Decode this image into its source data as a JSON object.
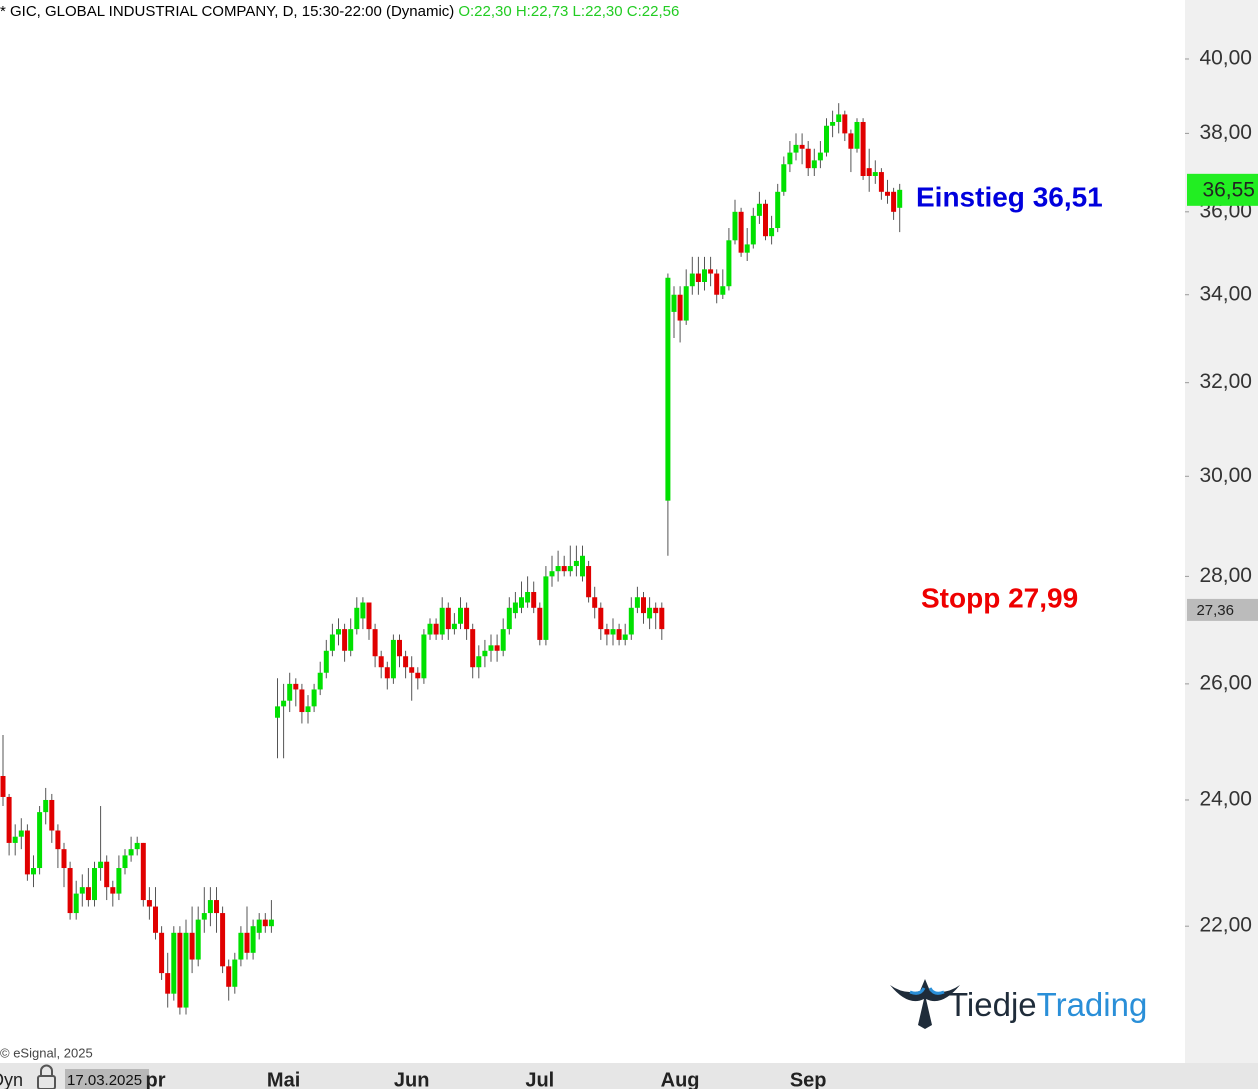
{
  "chart_data": {
    "type": "candlestick",
    "title": "* GIC, GLOBAL INDUSTRIAL COMPANY, D, 15:30-22:00 (Dynamic)",
    "ohlc_legend": "O:22,30 H:22,73 L:22,30 C:22,56",
    "ohlc_legend_color": "#22cc22",
    "up_color": "#00e000",
    "down_color": "#e00000",
    "wick_color": "#555555",
    "log_scale": true,
    "ylim": [
      20.02,
      41.66
    ],
    "yticks": [
      {
        "value": 22,
        "label": "22,00"
      },
      {
        "value": 24,
        "label": "24,00"
      },
      {
        "value": 26,
        "label": "26,00"
      },
      {
        "value": 28,
        "label": "28,00"
      },
      {
        "value": 30,
        "label": "30,00"
      },
      {
        "value": 32,
        "label": "32,00"
      },
      {
        "value": 34,
        "label": "34,00"
      },
      {
        "value": 36,
        "label": "36,00"
      },
      {
        "value": 38,
        "label": "38,00"
      },
      {
        "value": 40,
        "label": "40,00"
      }
    ],
    "price_tags": [
      {
        "value": 36.55,
        "label": "36,55",
        "color": "#22ee22"
      },
      {
        "value": 27.36,
        "label": "27,36",
        "color": "#bbbbbb"
      }
    ],
    "annotations": [
      {
        "text": "Einstieg 36,51",
        "color": "#0000dd"
      },
      {
        "text": "Stopp 27,99",
        "color": "#ee0000"
      }
    ],
    "copyright": "© eSignal, 2025",
    "mode": "Dyn",
    "start_date": "17.03.2025",
    "logo": [
      "Tiedje",
      "Trading"
    ],
    "categories": [
      null,
      null,
      null,
      null,
      null,
      null,
      null,
      null,
      null,
      null,
      null,
      null,
      null,
      null,
      null,
      null,
      null,
      null,
      null,
      null,
      null,
      null,
      null,
      null,
      null,
      "pr",
      null,
      null,
      null,
      null,
      null,
      null,
      null,
      null,
      null,
      null,
      null,
      null,
      null,
      null,
      null,
      null,
      null,
      null,
      null,
      null,
      "Mai",
      null,
      null,
      null,
      null,
      null,
      null,
      null,
      null,
      null,
      null,
      null,
      null,
      null,
      null,
      null,
      null,
      null,
      null,
      null,
      null,
      "Jun",
      null,
      null,
      null,
      null,
      null,
      null,
      null,
      null,
      null,
      null,
      null,
      null,
      null,
      null,
      null,
      null,
      null,
      null,
      null,
      null,
      "Jul",
      null,
      null,
      null,
      null,
      null,
      null,
      null,
      null,
      null,
      null,
      null,
      null,
      null,
      null,
      null,
      null,
      null,
      null,
      null,
      null,
      null,
      null,
      "Aug",
      null,
      null,
      null,
      null,
      null,
      null,
      null,
      null,
      null,
      null,
      null,
      null,
      null,
      null,
      null,
      null,
      null,
      null,
      null,
      null,
      "Sep",
      null,
      null,
      null,
      null,
      null,
      null,
      null,
      null,
      null,
      null,
      null,
      null,
      null,
      null,
      null
    ],
    "ohlc": [
      [
        24.4,
        25.1,
        23.9,
        24.05
      ],
      [
        24.05,
        24.1,
        23.1,
        23.3
      ],
      [
        23.3,
        23.6,
        23.1,
        23.4
      ],
      [
        23.4,
        23.7,
        23.2,
        23.5
      ],
      [
        23.5,
        23.6,
        22.7,
        22.8
      ],
      [
        22.8,
        23.1,
        22.6,
        22.9
      ],
      [
        22.9,
        23.9,
        22.8,
        23.8
      ],
      [
        23.8,
        24.2,
        23.6,
        24.0
      ],
      [
        24.0,
        24.1,
        23.3,
        23.5
      ],
      [
        23.5,
        23.6,
        22.9,
        23.2
      ],
      [
        23.2,
        23.3,
        22.6,
        22.9
      ],
      [
        22.9,
        23.0,
        22.1,
        22.2
      ],
      [
        22.2,
        22.7,
        22.1,
        22.5
      ],
      [
        22.5,
        22.8,
        22.3,
        22.6
      ],
      [
        22.6,
        22.9,
        22.3,
        22.4
      ],
      [
        22.4,
        23.0,
        22.3,
        22.9
      ],
      [
        22.9,
        23.9,
        22.7,
        23.0
      ],
      [
        23.0,
        23.1,
        22.4,
        22.6
      ],
      [
        22.6,
        22.7,
        22.3,
        22.5
      ],
      [
        22.5,
        23.1,
        22.4,
        22.9
      ],
      [
        22.9,
        23.2,
        22.8,
        23.1
      ],
      [
        23.1,
        23.4,
        23.0,
        23.2
      ],
      [
        23.2,
        23.4,
        23.1,
        23.3
      ],
      [
        23.3,
        23.3,
        22.3,
        22.4
      ],
      [
        22.4,
        22.6,
        22.1,
        22.3
      ],
      [
        22.3,
        22.6,
        21.8,
        21.9
      ],
      [
        21.9,
        22.0,
        21.2,
        21.3
      ],
      [
        21.3,
        21.6,
        20.8,
        21.0
      ],
      [
        21.0,
        22.0,
        20.9,
        21.9
      ],
      [
        21.9,
        22.0,
        20.7,
        20.8
      ],
      [
        20.8,
        22.1,
        20.7,
        21.9
      ],
      [
        21.9,
        22.3,
        21.3,
        21.5
      ],
      [
        21.5,
        22.3,
        21.4,
        22.1
      ],
      [
        22.1,
        22.6,
        21.9,
        22.2
      ],
      [
        22.2,
        22.6,
        22.0,
        22.4
      ],
      [
        22.4,
        22.6,
        21.9,
        22.2
      ],
      [
        22.2,
        22.3,
        21.3,
        21.4
      ],
      [
        21.4,
        21.5,
        20.9,
        21.1
      ],
      [
        21.1,
        21.6,
        21.0,
        21.5
      ],
      [
        21.5,
        22.0,
        21.4,
        21.9
      ],
      [
        21.9,
        22.3,
        21.5,
        21.6
      ],
      [
        21.6,
        22.1,
        21.5,
        22.0
      ],
      [
        21.9,
        22.2,
        21.8,
        22.1
      ],
      [
        22.1,
        22.2,
        21.9,
        22.0
      ],
      [
        22.0,
        22.4,
        21.9,
        22.1
      ],
      [
        25.4,
        26.1,
        24.7,
        25.6
      ],
      [
        25.6,
        26.0,
        24.7,
        25.7
      ],
      [
        25.7,
        26.2,
        25.5,
        26.0
      ],
      [
        26.0,
        26.1,
        25.6,
        25.9
      ],
      [
        25.9,
        26.0,
        25.3,
        25.5
      ],
      [
        25.5,
        25.8,
        25.3,
        25.6
      ],
      [
        25.6,
        26.0,
        25.5,
        25.9
      ],
      [
        25.9,
        26.4,
        25.8,
        26.2
      ],
      [
        26.2,
        26.8,
        26.1,
        26.6
      ],
      [
        26.6,
        27.1,
        26.5,
        26.9
      ],
      [
        26.9,
        27.2,
        26.7,
        27.0
      ],
      [
        27.0,
        27.1,
        26.4,
        26.6
      ],
      [
        26.6,
        27.2,
        26.5,
        27.0
      ],
      [
        27.0,
        27.6,
        26.9,
        27.4
      ],
      [
        27.2,
        27.6,
        27.0,
        27.5
      ],
      [
        27.5,
        27.5,
        26.8,
        27.0
      ],
      [
        27.0,
        27.1,
        26.3,
        26.5
      ],
      [
        26.5,
        26.6,
        26.1,
        26.3
      ],
      [
        26.3,
        26.4,
        25.9,
        26.1
      ],
      [
        26.1,
        26.9,
        26.0,
        26.8
      ],
      [
        26.8,
        26.9,
        26.3,
        26.5
      ],
      [
        26.5,
        26.6,
        26.1,
        26.3
      ],
      [
        26.3,
        26.5,
        25.7,
        26.2
      ],
      [
        26.2,
        26.3,
        25.9,
        26.1
      ],
      [
        26.1,
        27.0,
        26.0,
        26.9
      ],
      [
        26.9,
        27.2,
        26.8,
        27.1
      ],
      [
        27.1,
        27.2,
        26.8,
        26.9
      ],
      [
        26.9,
        27.6,
        26.8,
        27.4
      ],
      [
        27.4,
        27.5,
        26.8,
        27.0
      ],
      [
        27.0,
        27.3,
        26.9,
        27.1
      ],
      [
        27.1,
        27.6,
        27.0,
        27.4
      ],
      [
        27.4,
        27.5,
        26.8,
        27.0
      ],
      [
        27.0,
        27.1,
        26.1,
        26.3
      ],
      [
        26.3,
        26.7,
        26.1,
        26.5
      ],
      [
        26.5,
        26.8,
        26.3,
        26.6
      ],
      [
        26.6,
        26.9,
        26.4,
        26.7
      ],
      [
        26.7,
        26.9,
        26.4,
        26.6
      ],
      [
        26.6,
        27.2,
        26.5,
        27.0
      ],
      [
        27.0,
        27.6,
        26.9,
        27.4
      ],
      [
        27.3,
        27.7,
        27.2,
        27.5
      ],
      [
        27.4,
        27.9,
        27.3,
        27.6
      ],
      [
        27.5,
        28.0,
        27.4,
        27.7
      ],
      [
        27.7,
        27.9,
        27.3,
        27.4
      ],
      [
        27.4,
        27.5,
        26.7,
        26.8
      ],
      [
        26.8,
        28.2,
        26.7,
        28.0
      ],
      [
        28.0,
        28.4,
        27.8,
        28.1
      ],
      [
        28.1,
        28.5,
        27.9,
        28.2
      ],
      [
        28.2,
        28.4,
        28.0,
        28.1
      ],
      [
        28.1,
        28.6,
        28.0,
        28.2
      ],
      [
        28.2,
        28.6,
        28.0,
        28.3
      ],
      [
        28.0,
        28.6,
        27.9,
        28.4
      ],
      [
        28.2,
        28.3,
        27.5,
        27.6
      ],
      [
        27.6,
        27.8,
        27.2,
        27.4
      ],
      [
        27.4,
        27.5,
        26.8,
        27.0
      ],
      [
        27.0,
        27.1,
        26.7,
        26.9
      ],
      [
        26.9,
        27.2,
        26.7,
        27.0
      ],
      [
        27.0,
        27.1,
        26.7,
        26.8
      ],
      [
        26.8,
        27.1,
        26.7,
        26.9
      ],
      [
        26.9,
        27.6,
        26.8,
        27.4
      ],
      [
        27.4,
        27.8,
        27.3,
        27.6
      ],
      [
        27.6,
        27.7,
        27.1,
        27.3
      ],
      [
        27.2,
        27.6,
        27.0,
        27.4
      ],
      [
        27.4,
        27.5,
        27.0,
        27.3
      ],
      [
        27.4,
        27.5,
        26.8,
        27.0
      ],
      [
        29.5,
        34.5,
        28.4,
        34.4
      ],
      [
        33.6,
        34.2,
        33.0,
        34.0
      ],
      [
        34.0,
        34.2,
        32.9,
        33.4
      ],
      [
        33.4,
        34.6,
        33.3,
        34.2
      ],
      [
        34.2,
        34.9,
        34.0,
        34.5
      ],
      [
        34.5,
        34.9,
        34.0,
        34.3
      ],
      [
        34.3,
        34.9,
        34.1,
        34.6
      ],
      [
        34.6,
        34.9,
        34.2,
        34.5
      ],
      [
        34.5,
        34.6,
        33.8,
        34.0
      ],
      [
        34.0,
        34.6,
        33.9,
        34.2
      ],
      [
        34.2,
        35.6,
        34.1,
        35.3
      ],
      [
        35.3,
        36.3,
        35.2,
        36.0
      ],
      [
        36.0,
        36.1,
        34.9,
        35.0
      ],
      [
        35.0,
        35.6,
        34.8,
        35.2
      ],
      [
        35.2,
        36.1,
        35.1,
        35.9
      ],
      [
        35.9,
        36.5,
        35.7,
        36.2
      ],
      [
        36.2,
        36.3,
        35.3,
        35.4
      ],
      [
        35.4,
        35.9,
        35.2,
        35.6
      ],
      [
        35.6,
        36.7,
        35.5,
        36.5
      ],
      [
        36.5,
        37.4,
        36.4,
        37.2
      ],
      [
        37.2,
        37.8,
        37.0,
        37.5
      ],
      [
        37.5,
        38.0,
        37.3,
        37.7
      ],
      [
        37.7,
        38.0,
        37.2,
        37.6
      ],
      [
        37.6,
        37.8,
        36.9,
        37.1
      ],
      [
        37.1,
        37.6,
        36.9,
        37.3
      ],
      [
        37.3,
        37.8,
        37.1,
        37.5
      ],
      [
        37.5,
        38.4,
        37.4,
        38.2
      ],
      [
        38.2,
        38.6,
        37.9,
        38.3
      ],
      [
        38.3,
        38.8,
        38.0,
        38.5
      ],
      [
        38.5,
        38.6,
        37.8,
        38.0
      ],
      [
        38.0,
        38.1,
        37.0,
        37.6
      ],
      [
        37.6,
        38.4,
        37.5,
        38.3
      ],
      [
        38.3,
        38.4,
        36.8,
        36.9
      ],
      [
        37.1,
        37.6,
        36.5,
        36.9
      ],
      [
        36.9,
        37.3,
        36.7,
        37.0
      ],
      [
        37.0,
        37.1,
        36.3,
        36.5
      ],
      [
        36.5,
        36.8,
        36.2,
        36.4
      ],
      [
        36.5,
        36.6,
        35.8,
        36.0
      ],
      [
        36.1,
        36.7,
        35.5,
        36.55
      ]
    ]
  }
}
